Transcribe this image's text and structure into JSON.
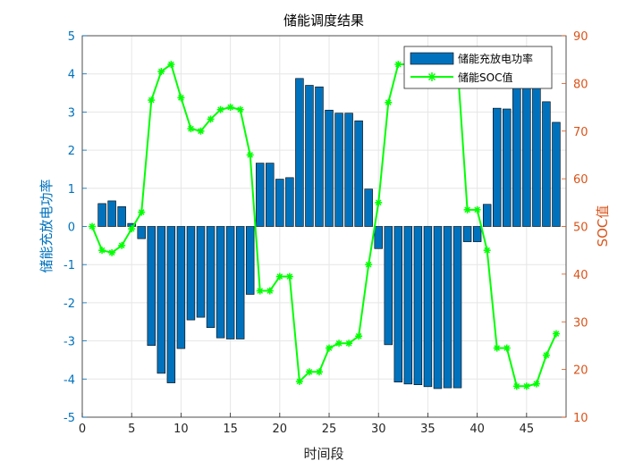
{
  "chart_data": {
    "type": "bar",
    "title": "储能调度结果",
    "xlabel": "时间段",
    "ylabel_left": "储能充放电功率",
    "ylabel_right": "SOC值",
    "xlim": [
      0,
      49
    ],
    "xticks": [
      0,
      5,
      10,
      15,
      20,
      25,
      30,
      35,
      40,
      45
    ],
    "ylim_left": [
      -5,
      5
    ],
    "yticks_left": [
      -5,
      -4,
      -3,
      -2,
      -1,
      0,
      1,
      2,
      3,
      4,
      5
    ],
    "ylim_right": [
      10,
      90
    ],
    "yticks_right": [
      10,
      20,
      30,
      40,
      50,
      60,
      70,
      80,
      90
    ],
    "grid": true,
    "legend_position": "top-right",
    "colors": {
      "bar": "#0072BD",
      "line": "#00FF00",
      "left_axis": "#0072BD",
      "right_axis": "#D95319"
    },
    "x": [
      1,
      2,
      3,
      4,
      5,
      6,
      7,
      8,
      9,
      10,
      11,
      12,
      13,
      14,
      15,
      16,
      17,
      18,
      19,
      20,
      21,
      22,
      23,
      24,
      25,
      26,
      27,
      28,
      29,
      30,
      31,
      32,
      33,
      34,
      35,
      36,
      37,
      38,
      39,
      40,
      41,
      42,
      43,
      44,
      45,
      46,
      47,
      48
    ],
    "series": [
      {
        "name": "储能充放电功率",
        "type": "bar",
        "axis": "left",
        "values": [
          0,
          0.6,
          0.67,
          0.52,
          0.08,
          -0.32,
          -3.12,
          -3.85,
          -4.1,
          -3.2,
          -2.45,
          -2.38,
          -2.65,
          -2.92,
          -2.95,
          -2.95,
          -1.78,
          1.66,
          1.66,
          1.24,
          1.28,
          3.88,
          3.7,
          3.66,
          3.05,
          2.97,
          2.97,
          2.77,
          0.98,
          -0.58,
          -3.1,
          -4.08,
          -4.13,
          -4.15,
          -4.2,
          -4.25,
          -4.23,
          -4.23,
          -0.4,
          -0.4,
          0.58,
          3.1,
          3.08,
          4.0,
          4.0,
          3.65,
          3.27,
          2.73
        ]
      },
      {
        "name": "储能SOC值",
        "type": "line",
        "axis": "right",
        "values": [
          50,
          45,
          44.5,
          46,
          49.5,
          53,
          76.5,
          82.5,
          84,
          77,
          70.5,
          70,
          72.5,
          74.5,
          75,
          74.5,
          65,
          36.5,
          36.5,
          39.5,
          39.5,
          17.5,
          19.5,
          19.5,
          24.5,
          25.5,
          25.5,
          27,
          42,
          55,
          76,
          84,
          84,
          84,
          84,
          84,
          84,
          84,
          53.5,
          53.5,
          45,
          24.5,
          24.5,
          16.5,
          16.5,
          17,
          23,
          27.5
        ]
      }
    ]
  }
}
